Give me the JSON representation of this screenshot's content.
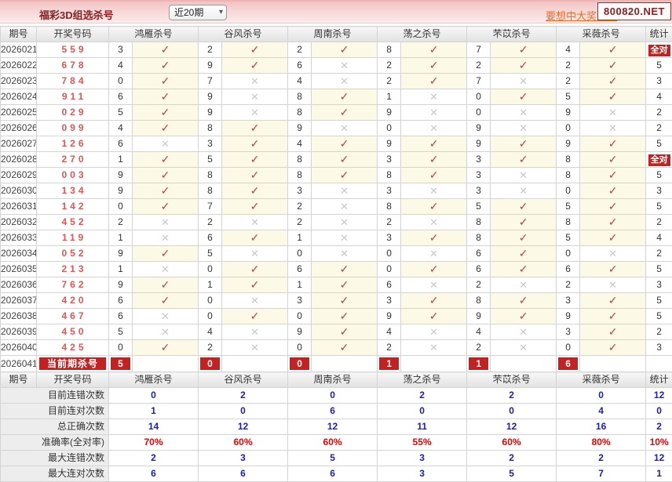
{
  "banner": {
    "title": "福彩3D组选杀号",
    "period_select": {
      "value": "近20期",
      "chevron": "▾"
    },
    "promo_text": "要想中大奖，天",
    "site_box": "800820.NET"
  },
  "columns": {
    "period": "期号",
    "numbers": "开奖号码",
    "experts": [
      "鸿雁杀号",
      "谷风杀号",
      "周南杀号",
      "荡之杀号",
      "芣苡杀号",
      "采薇杀号"
    ],
    "stat": "统计"
  },
  "icons": {
    "check": "✓",
    "cross": "✕"
  },
  "colors": {
    "accent_red": "#c32222",
    "check_red": "#c13b4b",
    "cross_gray": "#c9c9c9",
    "win_red": "#e85353",
    "value_blue": "#1c1cc4",
    "pct_red": "#ee0000",
    "banner_pink": "#f7d7d7"
  },
  "table": {
    "full_correct_label": "全对",
    "rows": [
      {
        "period": "2026021",
        "win": "559",
        "cells": [
          [
            "3",
            true
          ],
          [
            "2",
            true
          ],
          [
            "2",
            true
          ],
          [
            "8",
            true
          ],
          [
            "7",
            true
          ],
          [
            "4",
            true
          ]
        ],
        "stat": "全对"
      },
      {
        "period": "2026022",
        "win": "678",
        "cells": [
          [
            "4",
            true
          ],
          [
            "9",
            true
          ],
          [
            "6",
            false
          ],
          [
            "2",
            true
          ],
          [
            "2",
            true
          ],
          [
            "2",
            true
          ]
        ],
        "stat": "5"
      },
      {
        "period": "2026023",
        "win": "784",
        "cells": [
          [
            "0",
            true
          ],
          [
            "7",
            false
          ],
          [
            "4",
            false
          ],
          [
            "2",
            true
          ],
          [
            "7",
            false
          ],
          [
            "2",
            true
          ]
        ],
        "stat": "3"
      },
      {
        "period": "2026024",
        "win": "911",
        "cells": [
          [
            "6",
            true
          ],
          [
            "9",
            false
          ],
          [
            "8",
            true
          ],
          [
            "1",
            false
          ],
          [
            "0",
            true
          ],
          [
            "5",
            true
          ]
        ],
        "stat": "4"
      },
      {
        "period": "2026025",
        "win": "029",
        "cells": [
          [
            "5",
            true
          ],
          [
            "9",
            false
          ],
          [
            "8",
            true
          ],
          [
            "9",
            false
          ],
          [
            "0",
            false
          ],
          [
            "9",
            false
          ]
        ],
        "stat": "2"
      },
      {
        "period": "2026026",
        "win": "099",
        "cells": [
          [
            "4",
            true
          ],
          [
            "8",
            true
          ],
          [
            "9",
            false
          ],
          [
            "0",
            false
          ],
          [
            "9",
            false
          ],
          [
            "0",
            false
          ]
        ],
        "stat": "2"
      },
      {
        "period": "2026027",
        "win": "126",
        "cells": [
          [
            "6",
            false
          ],
          [
            "3",
            true
          ],
          [
            "4",
            true
          ],
          [
            "9",
            true
          ],
          [
            "9",
            true
          ],
          [
            "9",
            true
          ]
        ],
        "stat": "5"
      },
      {
        "period": "2026028",
        "win": "270",
        "cells": [
          [
            "1",
            true
          ],
          [
            "5",
            true
          ],
          [
            "8",
            true
          ],
          [
            "3",
            true
          ],
          [
            "3",
            true
          ],
          [
            "8",
            true
          ]
        ],
        "stat": "全对"
      },
      {
        "period": "2026029",
        "win": "003",
        "cells": [
          [
            "9",
            true
          ],
          [
            "8",
            true
          ],
          [
            "8",
            true
          ],
          [
            "8",
            true
          ],
          [
            "3",
            false
          ],
          [
            "8",
            true
          ]
        ],
        "stat": "5"
      },
      {
        "period": "2026030",
        "win": "134",
        "cells": [
          [
            "9",
            true
          ],
          [
            "8",
            true
          ],
          [
            "3",
            false
          ],
          [
            "3",
            false
          ],
          [
            "3",
            false
          ],
          [
            "0",
            true
          ]
        ],
        "stat": "3"
      },
      {
        "period": "2026031",
        "win": "142",
        "cells": [
          [
            "0",
            true
          ],
          [
            "7",
            true
          ],
          [
            "2",
            false
          ],
          [
            "8",
            true
          ],
          [
            "5",
            true
          ],
          [
            "5",
            true
          ]
        ],
        "stat": "5"
      },
      {
        "period": "2026032",
        "win": "452",
        "cells": [
          [
            "2",
            false
          ],
          [
            "2",
            false
          ],
          [
            "2",
            false
          ],
          [
            "2",
            false
          ],
          [
            "8",
            true
          ],
          [
            "8",
            true
          ]
        ],
        "stat": "2"
      },
      {
        "period": "2026033",
        "win": "119",
        "cells": [
          [
            "1",
            false
          ],
          [
            "6",
            true
          ],
          [
            "1",
            false
          ],
          [
            "3",
            true
          ],
          [
            "8",
            true
          ],
          [
            "5",
            true
          ]
        ],
        "stat": "4"
      },
      {
        "period": "2026034",
        "win": "052",
        "cells": [
          [
            "9",
            true
          ],
          [
            "5",
            false
          ],
          [
            "0",
            false
          ],
          [
            "0",
            false
          ],
          [
            "6",
            true
          ],
          [
            "0",
            false
          ]
        ],
        "stat": "2"
      },
      {
        "period": "2026035",
        "win": "213",
        "cells": [
          [
            "1",
            false
          ],
          [
            "0",
            true
          ],
          [
            "6",
            true
          ],
          [
            "0",
            true
          ],
          [
            "6",
            true
          ],
          [
            "6",
            true
          ]
        ],
        "stat": "5"
      },
      {
        "period": "2026036",
        "win": "762",
        "cells": [
          [
            "9",
            true
          ],
          [
            "1",
            true
          ],
          [
            "1",
            true
          ],
          [
            "6",
            false
          ],
          [
            "2",
            false
          ],
          [
            "2",
            false
          ]
        ],
        "stat": "3"
      },
      {
        "period": "2026037",
        "win": "420",
        "cells": [
          [
            "6",
            true
          ],
          [
            "0",
            false
          ],
          [
            "3",
            true
          ],
          [
            "3",
            true
          ],
          [
            "8",
            true
          ],
          [
            "3",
            true
          ]
        ],
        "stat": "5"
      },
      {
        "period": "2026038",
        "win": "467",
        "cells": [
          [
            "6",
            false
          ],
          [
            "0",
            true
          ],
          [
            "0",
            true
          ],
          [
            "9",
            true
          ],
          [
            "9",
            true
          ],
          [
            "9",
            true
          ]
        ],
        "stat": "5"
      },
      {
        "period": "2026039",
        "win": "450",
        "cells": [
          [
            "5",
            false
          ],
          [
            "4",
            false
          ],
          [
            "9",
            true
          ],
          [
            "4",
            false
          ],
          [
            "4",
            false
          ],
          [
            "3",
            true
          ]
        ],
        "stat": "2"
      },
      {
        "period": "2026040",
        "win": "425",
        "cells": [
          [
            "0",
            true
          ],
          [
            "2",
            false
          ],
          [
            "0",
            true
          ],
          [
            "2",
            false
          ],
          [
            "2",
            false
          ],
          [
            "0",
            true
          ]
        ],
        "stat": "3"
      }
    ],
    "current_row": {
      "period": "2026041",
      "label": "当前期杀号",
      "kills": [
        "5",
        "0",
        "0",
        "1",
        "1",
        "6"
      ],
      "stat": ""
    }
  },
  "summary": {
    "rows": [
      {
        "label": "目前连错次数",
        "values": [
          "0",
          "2",
          "0",
          "2",
          "2",
          "0",
          "12"
        ],
        "red": false
      },
      {
        "label": "目前连对次数",
        "values": [
          "1",
          "0",
          "6",
          "0",
          "0",
          "4",
          "0"
        ],
        "red": false
      },
      {
        "label": "总正确次数",
        "values": [
          "14",
          "12",
          "12",
          "11",
          "12",
          "16",
          "2"
        ],
        "red": false
      },
      {
        "label": "准确率(全对率)",
        "values": [
          "70%",
          "60%",
          "60%",
          "55%",
          "60%",
          "80%",
          "10%"
        ],
        "red": true
      },
      {
        "label": "最大连错次数",
        "values": [
          "2",
          "3",
          "5",
          "3",
          "2",
          "2",
          "12"
        ],
        "red": false
      },
      {
        "label": "最大连对次数",
        "values": [
          "6",
          "6",
          "6",
          "3",
          "5",
          "7",
          "1"
        ],
        "red": false
      }
    ]
  }
}
